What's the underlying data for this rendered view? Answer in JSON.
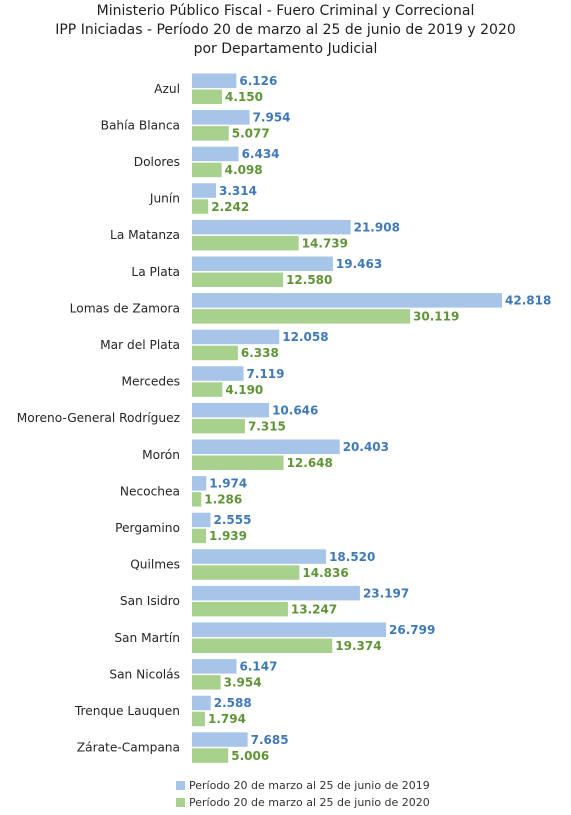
{
  "chart_data": {
    "type": "bar",
    "orientation": "horizontal",
    "title": "Ministerio Público Fiscal - Fuero Criminal y Correcional",
    "subtitle": [
      "IPP Iniciadas - Período 20 de marzo al 25 de junio de 2019 y 2020",
      "por Departamento Judicial"
    ],
    "categories": [
      "Azul",
      "Bahía Blanca",
      "Dolores",
      "Junín",
      "La Matanza",
      "La Plata",
      "Lomas de Zamora",
      "Mar del Plata",
      "Mercedes",
      "Moreno-General Rodríguez",
      "Morón",
      "Necochea",
      "Pergamino",
      "Quilmes",
      "San Isidro",
      "San Martín",
      "San Nicolás",
      "Trenque Lauquen",
      "Zárate-Campana"
    ],
    "series": [
      {
        "name": "Período 20 de marzo al 25 de junio de 2019",
        "color": "#a6c5e8",
        "values": [
          6126,
          7954,
          6434,
          3314,
          21908,
          19463,
          42818,
          12058,
          7119,
          10646,
          20403,
          1974,
          2555,
          18520,
          23197,
          26799,
          6147,
          2588,
          7685
        ],
        "labels": [
          "6.126",
          "7.954",
          "6.434",
          "3.314",
          "21.908",
          "19.463",
          "42.818",
          "12.058",
          "7.119",
          "10.646",
          "20.403",
          "1.974",
          "2.555",
          "18.520",
          "23.197",
          "26.799",
          "6.147",
          "2.588",
          "7.685"
        ]
      },
      {
        "name": "Período 20 de marzo al 25 de junio de 2020",
        "color": "#a9d18e",
        "values": [
          4150,
          5077,
          4098,
          2242,
          14739,
          12580,
          30119,
          6338,
          4190,
          7315,
          12648,
          1286,
          1939,
          14836,
          13247,
          19374,
          3954,
          1794,
          5006
        ],
        "labels": [
          "4.150",
          "5.077",
          "4.098",
          "2.242",
          "14.739",
          "12.580",
          "30.119",
          "6.338",
          "4.190",
          "7.315",
          "12.648",
          "1.286",
          "1.939",
          "14.836",
          "13.247",
          "19.374",
          "3.954",
          "1.794",
          "5.006"
        ]
      }
    ],
    "xlim": [
      0,
      42818
    ],
    "grid": false,
    "legend_position": "bottom"
  }
}
